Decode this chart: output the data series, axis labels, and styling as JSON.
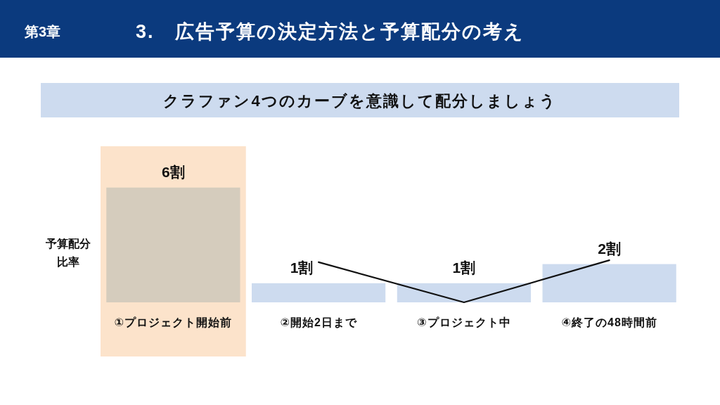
{
  "chart_data": {
    "type": "bar",
    "title": "3.　広告予算の決定方法と予算配分の考え",
    "subtitle": "クラファン4つのカーブを意識して配分しましょう",
    "ylabel": "予算配分比率",
    "annotations": [
      "第3章"
    ],
    "categories": [
      "①プロジェクト開始前",
      "②開始2日まで",
      "③プロジェクト中",
      "④終了の48時間前"
    ],
    "series": [
      {
        "values": [
          6,
          1,
          1,
          2
        ],
        "colors": [
          "#d5ccbd",
          "#cddbef",
          "#cddbef",
          "#cddbef"
        ],
        "value_labels": [
          "6割",
          "1割",
          "1割",
          "2割"
        ]
      },
      {
        "type": "line",
        "values": [
          null,
          2.1,
          0,
          2.2
        ],
        "color": "#111111"
      }
    ],
    "tick_labels": "x",
    "marker": "none",
    "line_style": "solid",
    "bands": [
      {
        "axis": "x",
        "from": "①プロジェクト開始前",
        "to": "①プロジェクト開始前",
        "color": "#fce3cb"
      }
    ]
  }
}
